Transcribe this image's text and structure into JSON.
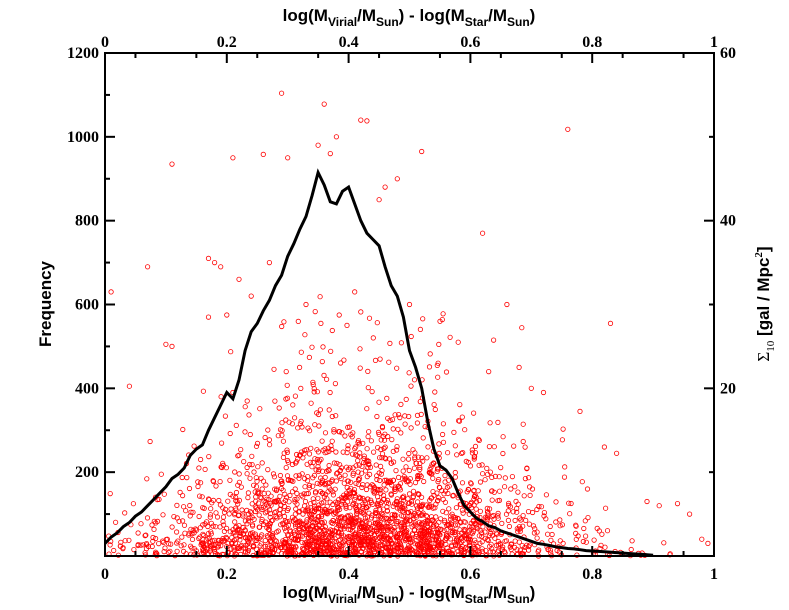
{
  "chart_data": {
    "type": "scatter",
    "xlabel_bottom": {
      "pre": "log(M",
      "s1": "Virial",
      "mid1": "/M",
      "s2": "Sun",
      "mid2": ") - log(M",
      "s3": "Star",
      "mid3": "/M",
      "s4": "Sun",
      "post": ")"
    },
    "xlabel_top": {
      "pre": "log(M",
      "s1": "Virial",
      "mid1": "/M",
      "s2": "Sun",
      "mid2": ") - log(M",
      "s3": "Star",
      "mid3": "/M",
      "s4": "Sun",
      "post": ")"
    },
    "ylabel_left": "Frequency",
    "ylabel_right": {
      "sigma": "Σ",
      "sub": "10",
      "mid": " [gal / Mpc",
      "sup": "2",
      "post": "]"
    },
    "xlim": [
      0,
      1
    ],
    "ylim_left": [
      0,
      1200
    ],
    "ylim_right": [
      0,
      60
    ],
    "x_ticks": [
      "0",
      "0.2",
      "0.4",
      "0.6",
      "0.8",
      "1"
    ],
    "x_tick_values": [
      0,
      0.2,
      0.4,
      0.6,
      0.8,
      1
    ],
    "y_left_ticks": [
      "200",
      "400",
      "600",
      "800",
      "1000",
      "1200"
    ],
    "y_left_tick_values": [
      200,
      400,
      600,
      800,
      1000,
      1200
    ],
    "y_right_ticks": [
      "20",
      "40",
      "60"
    ],
    "y_right_tick_values": [
      20,
      40,
      60
    ],
    "series": [
      {
        "type": "line",
        "axis": "left",
        "color": "#000000",
        "x": [
          0.0,
          0.01,
          0.02,
          0.03,
          0.04,
          0.05,
          0.06,
          0.07,
          0.08,
          0.09,
          0.1,
          0.11,
          0.12,
          0.13,
          0.14,
          0.15,
          0.16,
          0.17,
          0.18,
          0.19,
          0.2,
          0.21,
          0.22,
          0.23,
          0.24,
          0.25,
          0.26,
          0.27,
          0.28,
          0.29,
          0.3,
          0.31,
          0.32,
          0.33,
          0.34,
          0.35,
          0.36,
          0.37,
          0.38,
          0.39,
          0.4,
          0.41,
          0.42,
          0.43,
          0.44,
          0.45,
          0.46,
          0.47,
          0.48,
          0.49,
          0.5,
          0.51,
          0.52,
          0.53,
          0.54,
          0.55,
          0.56,
          0.57,
          0.58,
          0.59,
          0.6,
          0.61,
          0.62,
          0.63,
          0.64,
          0.65,
          0.66,
          0.67,
          0.68,
          0.69,
          0.7,
          0.71,
          0.72,
          0.73,
          0.74,
          0.75,
          0.76,
          0.77,
          0.78,
          0.79,
          0.8,
          0.82,
          0.84,
          0.86,
          0.88,
          0.9
        ],
        "y": [
          30,
          45,
          55,
          70,
          80,
          95,
          105,
          120,
          135,
          150,
          165,
          185,
          195,
          210,
          240,
          255,
          265,
          300,
          330,
          360,
          390,
          375,
          420,
          490,
          535,
          555,
          585,
          610,
          645,
          670,
          715,
          745,
          780,
          810,
          860,
          915,
          885,
          845,
          840,
          870,
          880,
          840,
          800,
          770,
          755,
          740,
          690,
          645,
          620,
          570,
          490,
          450,
          400,
          320,
          255,
          215,
          205,
          185,
          150,
          120,
          105,
          90,
          82,
          72,
          68,
          60,
          55,
          50,
          45,
          40,
          35,
          30,
          28,
          25,
          22,
          20,
          18,
          17,
          15,
          13,
          12,
          10,
          8,
          6,
          4,
          2
        ]
      },
      {
        "type": "scatter",
        "axis": "left",
        "color": "#ff0000",
        "marker": "open-circle",
        "points": [
          [
            0.29,
            1104
          ],
          [
            0.36,
            1078
          ],
          [
            0.38,
            1000
          ],
          [
            0.43,
            1038
          ],
          [
            0.42,
            1040
          ],
          [
            0.76,
            1018
          ],
          [
            0.11,
            935
          ],
          [
            0.21,
            950
          ],
          [
            0.26,
            958
          ],
          [
            0.3,
            950
          ],
          [
            0.37,
            960
          ],
          [
            0.52,
            965
          ],
          [
            0.17,
            710
          ],
          [
            0.18,
            700
          ],
          [
            0.19,
            690
          ],
          [
            0.07,
            690
          ],
          [
            0.01,
            630
          ],
          [
            0.35,
            980
          ],
          [
            0.46,
            880
          ],
          [
            0.48,
            900
          ],
          [
            0.45,
            850
          ],
          [
            0.62,
            770
          ],
          [
            0.66,
            600
          ],
          [
            0.83,
            555
          ],
          [
            0.1,
            505
          ],
          [
            0.11,
            500
          ],
          [
            0.04,
            405
          ],
          [
            0.21,
            390
          ],
          [
            0.17,
            570
          ],
          [
            0.2,
            575
          ],
          [
            0.22,
            660
          ],
          [
            0.24,
            620
          ],
          [
            0.27,
            700
          ],
          [
            0.33,
            600
          ],
          [
            0.41,
            630
          ],
          [
            0.5,
            600
          ],
          [
            0.55,
            560
          ],
          [
            0.58,
            510
          ],
          [
            0.63,
            440
          ],
          [
            0.68,
            450
          ],
          [
            0.7,
            400
          ],
          [
            0.72,
            390
          ],
          [
            0.78,
            345
          ],
          [
            0.82,
            260
          ],
          [
            0.84,
            245
          ],
          [
            0.89,
            130
          ],
          [
            0.91,
            120
          ],
          [
            0.94,
            125
          ],
          [
            0.96,
            100
          ],
          [
            0.98,
            40
          ],
          [
            0.99,
            30
          ]
        ],
        "cloud": {
          "count": 2600,
          "x_peak": 0.42,
          "x_spread": 0.16,
          "y_scale": 120,
          "y_max": 620
        }
      }
    ]
  }
}
